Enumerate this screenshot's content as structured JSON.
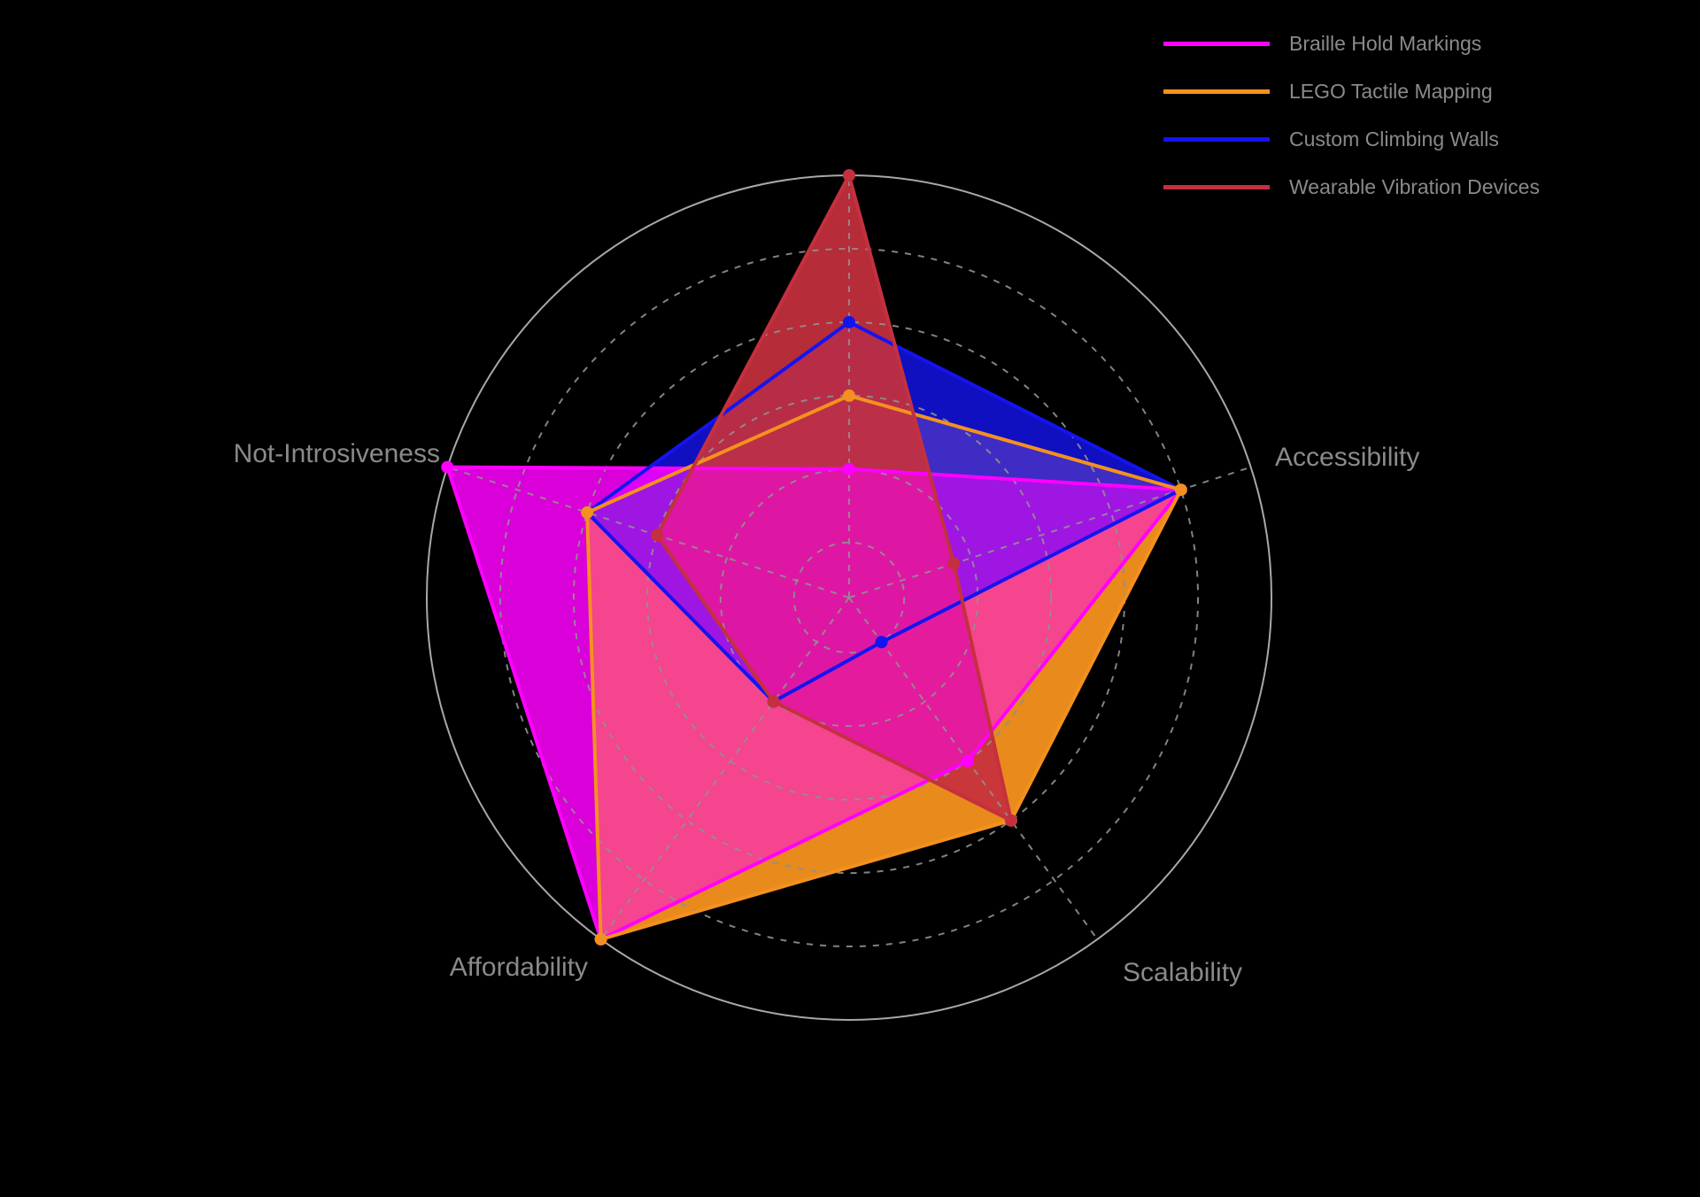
{
  "background_color": "#000000",
  "chart_data": {
    "type": "radar",
    "categories": [
      "",
      "Accessibility",
      "Scalability",
      "Affordability",
      "Not-Introsiveness"
    ],
    "series": [
      {
        "name": "Braille Hold Markings",
        "color": "#FF00FF",
        "values": [
          2,
          8,
          4,
          10,
          10
        ]
      },
      {
        "name": "LEGO Tactile Mapping",
        "color": "#F4911E",
        "values": [
          4,
          8,
          6,
          10,
          6
        ]
      },
      {
        "name": "Custom Climbing Walls",
        "color": "#1414F0",
        "values": [
          6,
          8,
          0,
          2,
          6
        ]
      },
      {
        "name": "Wearable Vibration Devices",
        "color": "#C5303E",
        "values": [
          10,
          1.5,
          6,
          2,
          4
        ]
      }
    ],
    "title": "",
    "radial_range": [
      -1.5,
      10
    ],
    "ring_ticks": [
      0,
      2,
      4,
      6,
      8
    ],
    "outer_ring_value": 10,
    "start_angle_deg": 90,
    "direction": "clockwise",
    "grid": {
      "ring_style": "dashed",
      "grid_color": "#909090",
      "outer_ring_color": "#A8A8A8",
      "spokes": "dashed"
    },
    "legend_position": "top-right",
    "axis_label_color": "#8a8a8a",
    "tick_labels_visible": false
  }
}
